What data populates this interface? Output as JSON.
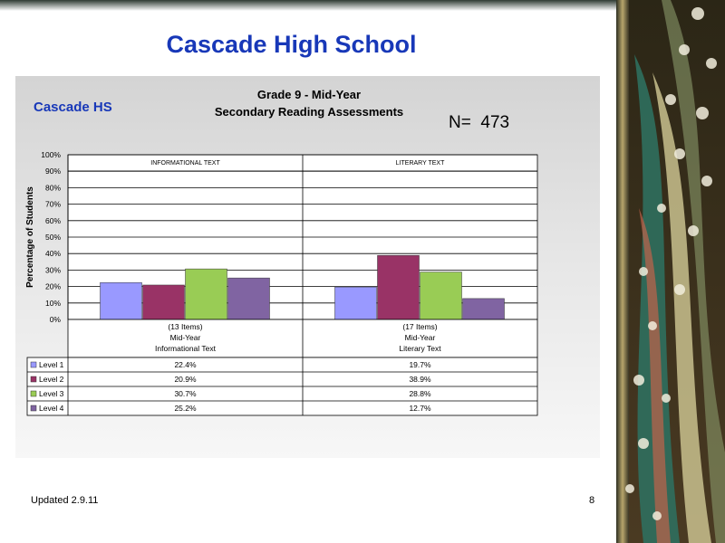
{
  "slide": {
    "title": "Cascade High School",
    "footer": "Updated  2.9.11",
    "page_number": "8"
  },
  "chart_meta": {
    "school_label": "Cascade HS",
    "title_line1": "Grade 9 - Mid-Year",
    "title_line2": "Secondary Reading Assessments",
    "n_label": "N=",
    "n_value": "473"
  },
  "chart_data": {
    "type": "bar",
    "title": "Grade 9 - Mid-Year Secondary Reading Assessments",
    "ylabel": "Percentage of Students",
    "ylim": [
      0,
      100
    ],
    "yticks": [
      "0%",
      "10%",
      "20%",
      "30%",
      "40%",
      "50%",
      "60%",
      "70%",
      "80%",
      "90%",
      "100%"
    ],
    "grid": true,
    "panel_headers": [
      "INFORMATIONAL TEXT",
      "LITERARY TEXT"
    ],
    "categories": [
      [
        "(13 Items)",
        "Mid-Year",
        "Informational Text"
      ],
      [
        "(17 Items)",
        "Mid-Year",
        "Literary Text"
      ]
    ],
    "series": [
      {
        "name": "Level 1",
        "color": "#9999ff",
        "values": [
          22.4,
          19.7
        ],
        "labels": [
          "22.4%",
          "19.7%"
        ]
      },
      {
        "name": "Level 2",
        "color": "#993366",
        "values": [
          20.9,
          38.9
        ],
        "labels": [
          "20.9%",
          "38.9%"
        ]
      },
      {
        "name": "Level 3",
        "color": "#99cc55",
        "values": [
          30.7,
          28.8
        ],
        "labels": [
          "30.7%",
          "28.8%"
        ]
      },
      {
        "name": "Level 4",
        "color": "#8064a2",
        "values": [
          25.2,
          12.7
        ],
        "labels": [
          "25.2%",
          "12.7%"
        ]
      }
    ]
  }
}
